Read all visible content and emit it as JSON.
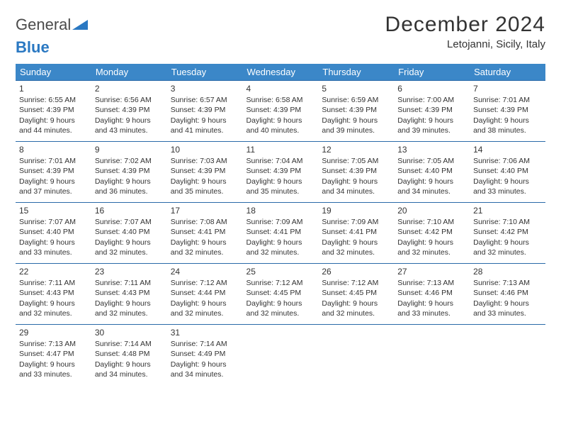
{
  "brand": {
    "word1": "General",
    "word2": "Blue",
    "triangle_color": "#2a78c2"
  },
  "title": "December 2024",
  "location": "Letojanni, Sicily, Italy",
  "colors": {
    "header_bg": "#3b87c8",
    "header_text": "#ffffff",
    "cell_border": "#2a6aa8",
    "body_text": "#333333",
    "background": "#ffffff"
  },
  "day_headers": [
    "Sunday",
    "Monday",
    "Tuesday",
    "Wednesday",
    "Thursday",
    "Friday",
    "Saturday"
  ],
  "weeks": [
    [
      {
        "n": "1",
        "sr": "6:55 AM",
        "ss": "4:39 PM",
        "dl": "9 hours and 44 minutes."
      },
      {
        "n": "2",
        "sr": "6:56 AM",
        "ss": "4:39 PM",
        "dl": "9 hours and 43 minutes."
      },
      {
        "n": "3",
        "sr": "6:57 AM",
        "ss": "4:39 PM",
        "dl": "9 hours and 41 minutes."
      },
      {
        "n": "4",
        "sr": "6:58 AM",
        "ss": "4:39 PM",
        "dl": "9 hours and 40 minutes."
      },
      {
        "n": "5",
        "sr": "6:59 AM",
        "ss": "4:39 PM",
        "dl": "9 hours and 39 minutes."
      },
      {
        "n": "6",
        "sr": "7:00 AM",
        "ss": "4:39 PM",
        "dl": "9 hours and 39 minutes."
      },
      {
        "n": "7",
        "sr": "7:01 AM",
        "ss": "4:39 PM",
        "dl": "9 hours and 38 minutes."
      }
    ],
    [
      {
        "n": "8",
        "sr": "7:01 AM",
        "ss": "4:39 PM",
        "dl": "9 hours and 37 minutes."
      },
      {
        "n": "9",
        "sr": "7:02 AM",
        "ss": "4:39 PM",
        "dl": "9 hours and 36 minutes."
      },
      {
        "n": "10",
        "sr": "7:03 AM",
        "ss": "4:39 PM",
        "dl": "9 hours and 35 minutes."
      },
      {
        "n": "11",
        "sr": "7:04 AM",
        "ss": "4:39 PM",
        "dl": "9 hours and 35 minutes."
      },
      {
        "n": "12",
        "sr": "7:05 AM",
        "ss": "4:39 PM",
        "dl": "9 hours and 34 minutes."
      },
      {
        "n": "13",
        "sr": "7:05 AM",
        "ss": "4:40 PM",
        "dl": "9 hours and 34 minutes."
      },
      {
        "n": "14",
        "sr": "7:06 AM",
        "ss": "4:40 PM",
        "dl": "9 hours and 33 minutes."
      }
    ],
    [
      {
        "n": "15",
        "sr": "7:07 AM",
        "ss": "4:40 PM",
        "dl": "9 hours and 33 minutes."
      },
      {
        "n": "16",
        "sr": "7:07 AM",
        "ss": "4:40 PM",
        "dl": "9 hours and 32 minutes."
      },
      {
        "n": "17",
        "sr": "7:08 AM",
        "ss": "4:41 PM",
        "dl": "9 hours and 32 minutes."
      },
      {
        "n": "18",
        "sr": "7:09 AM",
        "ss": "4:41 PM",
        "dl": "9 hours and 32 minutes."
      },
      {
        "n": "19",
        "sr": "7:09 AM",
        "ss": "4:41 PM",
        "dl": "9 hours and 32 minutes."
      },
      {
        "n": "20",
        "sr": "7:10 AM",
        "ss": "4:42 PM",
        "dl": "9 hours and 32 minutes."
      },
      {
        "n": "21",
        "sr": "7:10 AM",
        "ss": "4:42 PM",
        "dl": "9 hours and 32 minutes."
      }
    ],
    [
      {
        "n": "22",
        "sr": "7:11 AM",
        "ss": "4:43 PM",
        "dl": "9 hours and 32 minutes."
      },
      {
        "n": "23",
        "sr": "7:11 AM",
        "ss": "4:43 PM",
        "dl": "9 hours and 32 minutes."
      },
      {
        "n": "24",
        "sr": "7:12 AM",
        "ss": "4:44 PM",
        "dl": "9 hours and 32 minutes."
      },
      {
        "n": "25",
        "sr": "7:12 AM",
        "ss": "4:45 PM",
        "dl": "9 hours and 32 minutes."
      },
      {
        "n": "26",
        "sr": "7:12 AM",
        "ss": "4:45 PM",
        "dl": "9 hours and 32 minutes."
      },
      {
        "n": "27",
        "sr": "7:13 AM",
        "ss": "4:46 PM",
        "dl": "9 hours and 33 minutes."
      },
      {
        "n": "28",
        "sr": "7:13 AM",
        "ss": "4:46 PM",
        "dl": "9 hours and 33 minutes."
      }
    ],
    [
      {
        "n": "29",
        "sr": "7:13 AM",
        "ss": "4:47 PM",
        "dl": "9 hours and 33 minutes."
      },
      {
        "n": "30",
        "sr": "7:14 AM",
        "ss": "4:48 PM",
        "dl": "9 hours and 34 minutes."
      },
      {
        "n": "31",
        "sr": "7:14 AM",
        "ss": "4:49 PM",
        "dl": "9 hours and 34 minutes."
      },
      null,
      null,
      null,
      null
    ]
  ],
  "labels": {
    "sunrise": "Sunrise:",
    "sunset": "Sunset:",
    "daylight": "Daylight:"
  }
}
